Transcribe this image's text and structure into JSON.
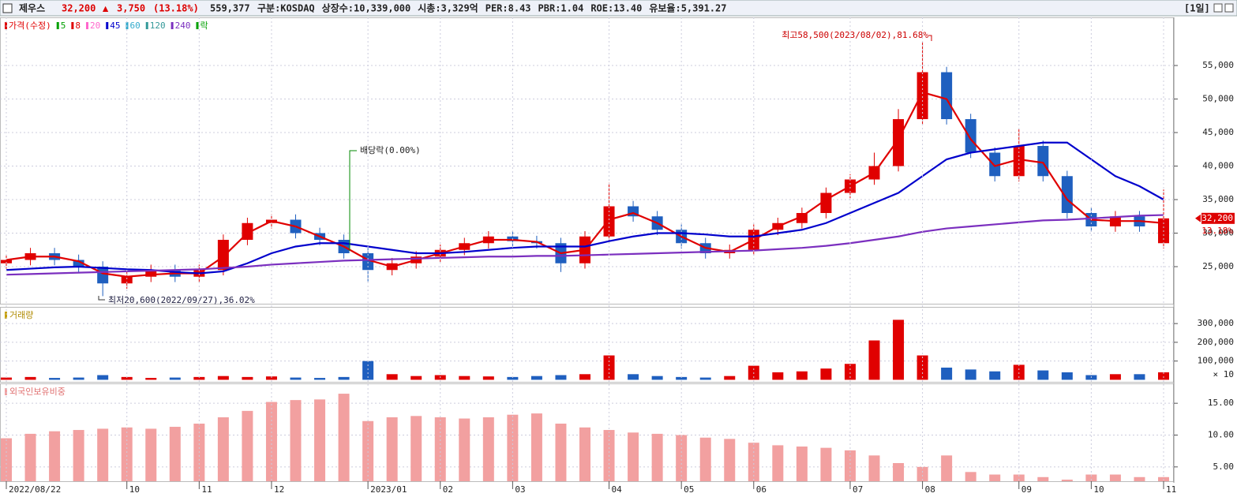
{
  "header": {
    "name": "제우스",
    "price": "32,200",
    "arrow": "▲",
    "change": "3,750",
    "change_pct": "(13.18%)",
    "volume": "559,377",
    "items": [
      "구분:KOSDAQ",
      "상장수:10,339,000",
      "시총:3,329억",
      "PER:8.43",
      "PBR:1.04",
      "ROE:13.40",
      "유보율:5,391.27"
    ],
    "period": "[1일]"
  },
  "chart_data": [
    {
      "type": "candlestick",
      "legend": [
        {
          "name": "가격(수정)",
          "color": "#e00000"
        },
        {
          "name": "5",
          "color": "#00a000"
        },
        {
          "name": "8",
          "color": "#e00000"
        },
        {
          "name": "20",
          "color": "#ff66cc"
        },
        {
          "name": "45",
          "color": "#0000cc"
        },
        {
          "name": "60",
          "color": "#33aacc"
        },
        {
          "name": "120",
          "color": "#339999"
        },
        {
          "name": "240",
          "color": "#7b2fbf"
        },
        {
          "name": "락",
          "color": "#00a000"
        }
      ],
      "annotations": {
        "high": "최고58,500(2023/08/02),81.68%",
        "low": "최저20,600(2022/09/27),36.02%",
        "dividend": "배당락(0.00%)",
        "price_label": "32,200",
        "change_label": "13.18%"
      },
      "up_color": "#e00000",
      "down_color": "#1f5fbf",
      "open": [
        25500,
        26000,
        27000,
        26000,
        25000,
        22500,
        23500,
        24500,
        23500,
        24500,
        29000,
        31500,
        32000,
        30000,
        29000,
        27000,
        24500,
        25500,
        26500,
        27500,
        28500,
        29500,
        28800,
        28500,
        25500,
        29500,
        34000,
        32500,
        30500,
        28500,
        27000,
        27500,
        30500,
        31500,
        33000,
        36000,
        38000,
        40000,
        47000,
        54000,
        47000,
        42000,
        38500,
        43000,
        38500,
        33000,
        31000,
        32500,
        28500
      ],
      "high": [
        26800,
        27800,
        27800,
        26800,
        25800,
        24300,
        25300,
        25300,
        25300,
        29800,
        32300,
        32800,
        32800,
        30800,
        29800,
        27800,
        26300,
        27300,
        28300,
        29300,
        30300,
        30300,
        29600,
        29300,
        30300,
        37500,
        34800,
        33300,
        31300,
        29300,
        28300,
        31300,
        32300,
        33800,
        36800,
        38800,
        42000,
        48500,
        58500,
        54800,
        47800,
        42800,
        45500,
        43800,
        39300,
        33800,
        33300,
        33300,
        36500
      ],
      "low": [
        24700,
        25200,
        25200,
        24200,
        20600,
        21700,
        22700,
        22700,
        22700,
        23700,
        28200,
        30700,
        29200,
        28200,
        26200,
        22800,
        23700,
        24700,
        25700,
        26700,
        27700,
        28000,
        27700,
        24200,
        24700,
        28700,
        31700,
        29700,
        27700,
        26200,
        26200,
        26700,
        29700,
        30700,
        32200,
        35200,
        37200,
        39200,
        46200,
        46200,
        41200,
        37700,
        37700,
        37700,
        32200,
        30200,
        30200,
        30200,
        27700
      ],
      "close": [
        26000,
        27000,
        26000,
        25000,
        22500,
        23500,
        24500,
        23500,
        24500,
        29000,
        31500,
        32000,
        30000,
        29000,
        27000,
        24500,
        25500,
        26500,
        27500,
        28500,
        29500,
        28800,
        28500,
        25500,
        29500,
        34000,
        32500,
        30500,
        28500,
        27000,
        27500,
        30500,
        31500,
        33000,
        36000,
        38000,
        40000,
        47000,
        54000,
        47000,
        42000,
        38500,
        43000,
        38500,
        33000,
        31000,
        32500,
        31000,
        32200
      ],
      "series": [
        {
          "name": "8",
          "color": "#e00000",
          "values": [
            26000,
            26500,
            26500,
            25800,
            24000,
            23500,
            23800,
            24000,
            24000,
            26500,
            30000,
            31800,
            31000,
            29500,
            28000,
            26000,
            25000,
            26000,
            27000,
            28000,
            29000,
            29000,
            28700,
            27000,
            27500,
            32000,
            33000,
            31500,
            29500,
            27800,
            27200,
            29000,
            31000,
            32500,
            35000,
            37000,
            39000,
            44000,
            51000,
            50000,
            44000,
            40000,
            41000,
            40500,
            35000,
            32000,
            31800,
            31800,
            31500
          ]
        },
        {
          "name": "45",
          "color": "#0000cc",
          "values": [
            24500,
            24700,
            24900,
            25000,
            24800,
            24600,
            24500,
            24200,
            24000,
            24300,
            25500,
            27000,
            28000,
            28500,
            28500,
            28000,
            27500,
            27000,
            27000,
            27200,
            27500,
            27800,
            28000,
            28000,
            28000,
            28800,
            29500,
            30000,
            30000,
            29800,
            29500,
            29500,
            30000,
            30500,
            31500,
            33000,
            34500,
            36000,
            38500,
            41000,
            42000,
            42500,
            43000,
            43500,
            43500,
            41000,
            38500,
            37000,
            35000
          ]
        },
        {
          "name": "240",
          "color": "#7b2fbf",
          "values": [
            23800,
            23900,
            24000,
            24100,
            24200,
            24300,
            24400,
            24500,
            24600,
            24800,
            25000,
            25300,
            25500,
            25700,
            25900,
            26000,
            26100,
            26200,
            26300,
            26400,
            26500,
            26500,
            26600,
            26600,
            26700,
            26800,
            26900,
            27000,
            27100,
            27200,
            27300,
            27400,
            27600,
            27800,
            28100,
            28500,
            29000,
            29500,
            30200,
            30700,
            31000,
            31300,
            31600,
            31900,
            32000,
            32200,
            32400,
            32600,
            32700
          ]
        }
      ],
      "ylim": [
        19470,
        62180
      ],
      "yticks": [
        {
          "value": 25000,
          "label": "25,000"
        },
        {
          "value": 30000,
          "label": "30,000"
        },
        {
          "value": 35000,
          "label": "35,000"
        },
        {
          "value": 40000,
          "label": "40,000"
        },
        {
          "value": 45000,
          "label": "45,000"
        },
        {
          "value": 50000,
          "label": "50,000"
        },
        {
          "value": 55000,
          "label": "55,000"
        }
      ],
      "grid": true
    },
    {
      "type": "bar",
      "title": "거래량",
      "unit_note": "× 10",
      "values": [
        12000,
        15000,
        10000,
        12000,
        25000,
        15000,
        10000,
        12000,
        15000,
        20000,
        15000,
        18000,
        12000,
        10000,
        15000,
        100000,
        30000,
        20000,
        25000,
        20000,
        18000,
        15000,
        20000,
        25000,
        30000,
        130000,
        30000,
        20000,
        15000,
        12000,
        20000,
        75000,
        40000,
        45000,
        60000,
        85000,
        210000,
        320000,
        130000,
        65000,
        55000,
        45000,
        80000,
        50000,
        40000,
        25000,
        30000,
        30000,
        40000
      ],
      "ylim": [
        -15000,
        389000
      ],
      "yticks": [
        {
          "value": 100000,
          "label": "100,000"
        },
        {
          "value": 200000,
          "label": "200,000"
        },
        {
          "value": 300000,
          "label": "300,000"
        }
      ],
      "grid": true
    },
    {
      "type": "bar",
      "title": "외국인보유비중",
      "color": "#f2a0a0",
      "values": [
        9.5,
        10.2,
        10.6,
        10.8,
        11.0,
        11.2,
        11.0,
        11.3,
        11.8,
        12.8,
        13.8,
        15.2,
        15.5,
        15.6,
        16.5,
        12.2,
        12.8,
        13.0,
        12.8,
        12.6,
        12.8,
        13.2,
        13.4,
        11.8,
        11.2,
        10.8,
        10.4,
        10.2,
        10.0,
        9.6,
        9.4,
        8.8,
        8.4,
        8.2,
        8.0,
        7.6,
        6.8,
        5.6,
        5.0,
        6.8,
        4.2,
        3.8,
        3.8,
        3.4,
        3.0,
        3.8,
        3.8,
        3.4,
        3.4
      ],
      "ylim": [
        2.75,
        18.12
      ],
      "yticks": [
        {
          "value": 5,
          "label": "5.00"
        },
        {
          "value": 10,
          "label": "10.00"
        },
        {
          "value": 15,
          "label": "15.00"
        }
      ],
      "grid": true,
      "categories": [
        "2022/08/22",
        null,
        null,
        null,
        null,
        "10",
        null,
        null,
        "11",
        null,
        null,
        "12",
        null,
        null,
        null,
        "2023/01",
        null,
        null,
        "02",
        null,
        null,
        "03",
        null,
        null,
        null,
        "04",
        null,
        null,
        "05",
        null,
        null,
        "06",
        null,
        null,
        null,
        "07",
        null,
        null,
        "08",
        null,
        null,
        null,
        "09",
        null,
        null,
        "10",
        null,
        null,
        "11"
      ]
    }
  ]
}
